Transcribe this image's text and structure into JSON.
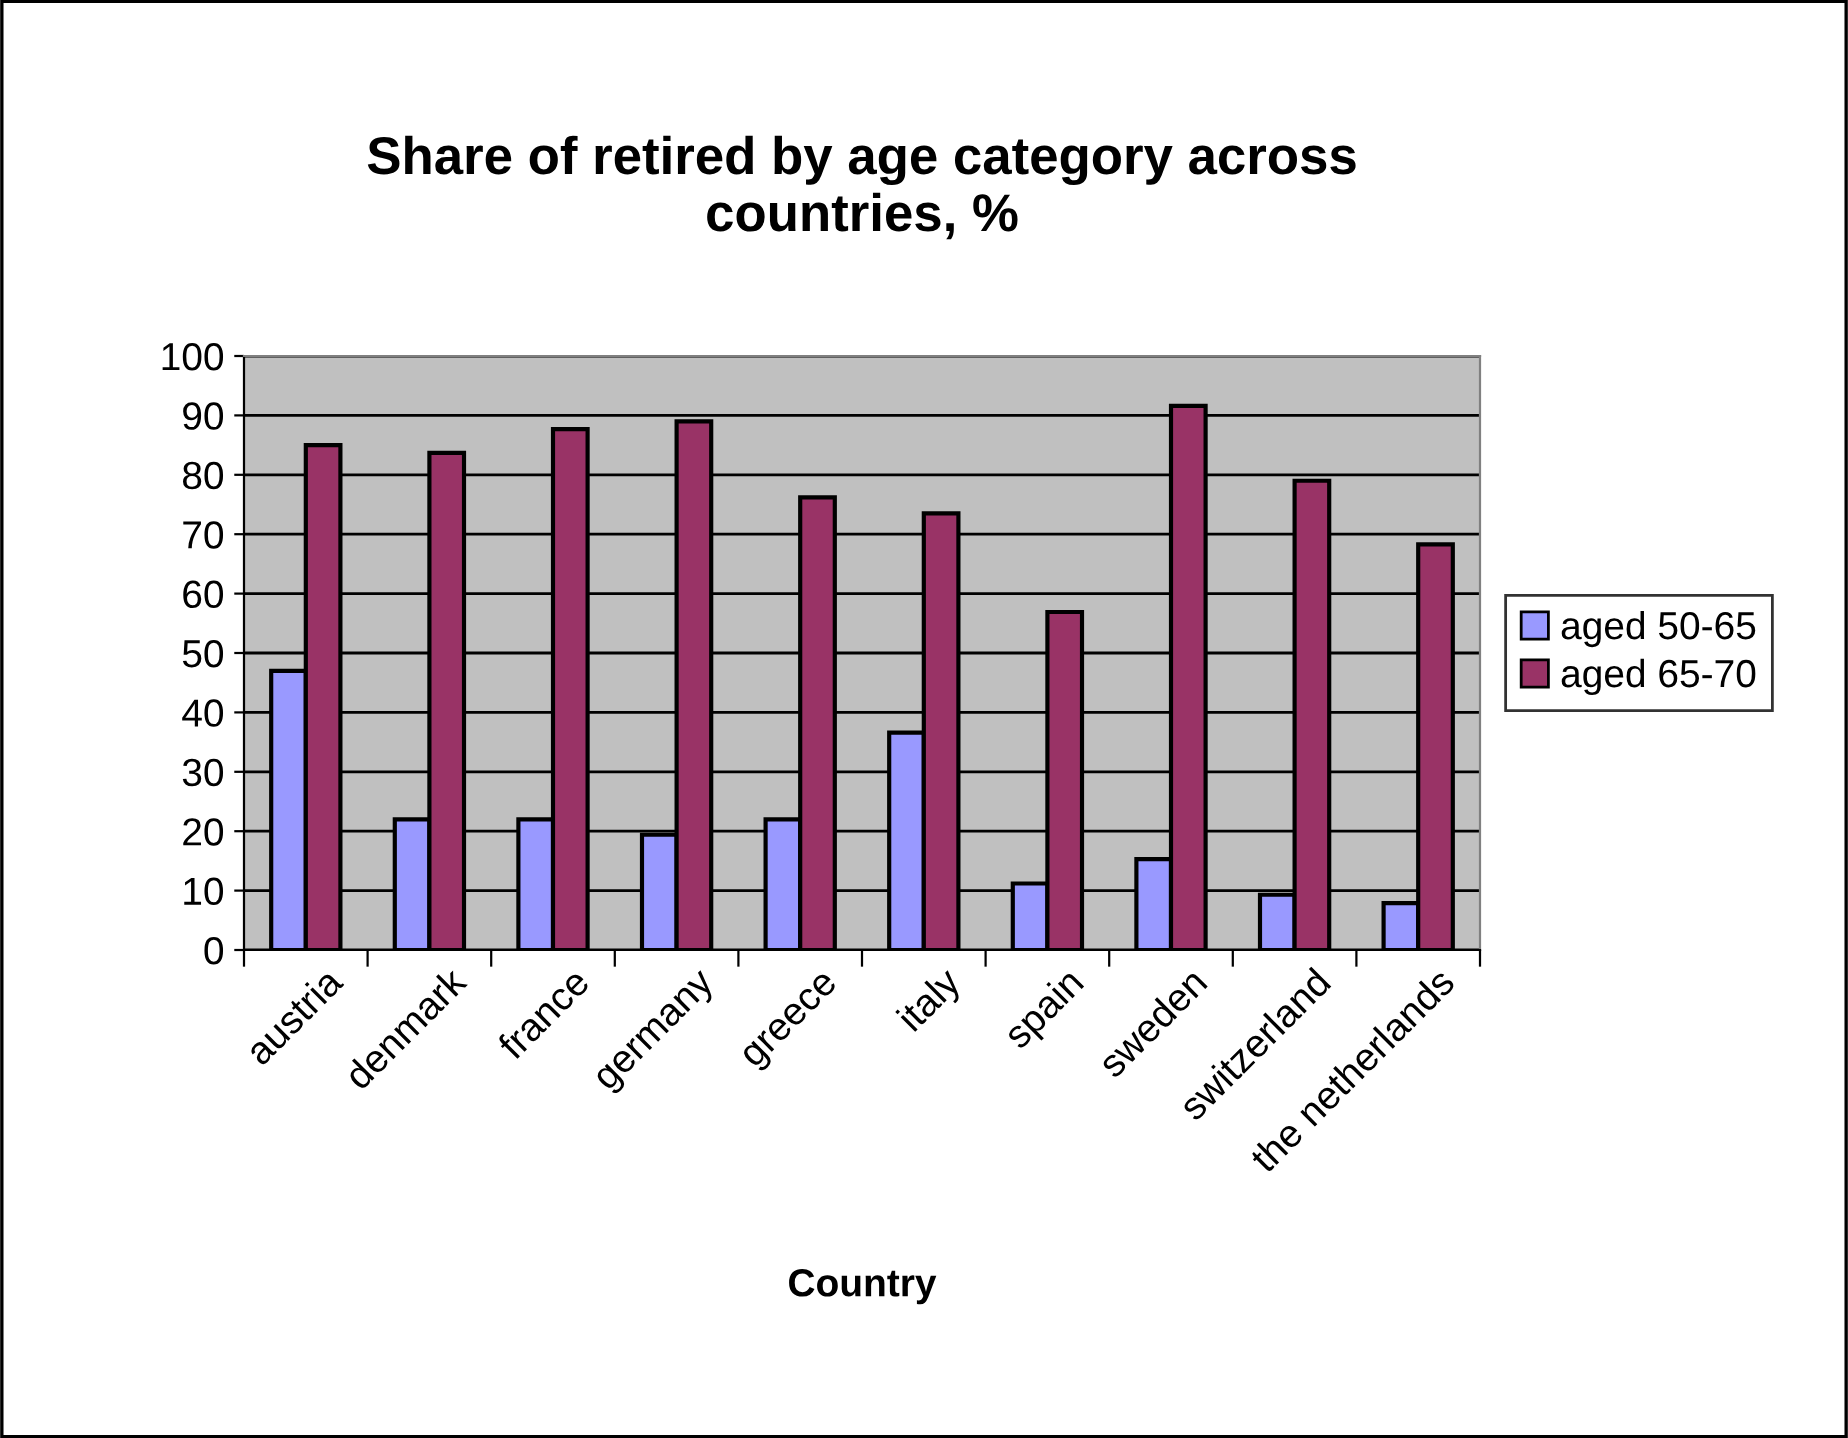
{
  "chart_data": {
    "type": "bar",
    "title": "Share of retired by age category across\ncountries, %",
    "xlabel": "Country",
    "categories": [
      "austria",
      "denmark",
      "france",
      "germany",
      "greece",
      "italy",
      "spain",
      "sweden",
      "switzerland",
      "the netherlands"
    ],
    "series": [
      {
        "name": "aged 50-65",
        "color": "#9999ff",
        "values": [
          47,
          22,
          22,
          19.4,
          22,
          36.6,
          11.2,
          15.3,
          9.3,
          7.9
        ]
      },
      {
        "name": "aged 65-70",
        "color": "#993366",
        "values": [
          85,
          83.7,
          87.7,
          89,
          76.2,
          73.5,
          56.9,
          91.6,
          79,
          68.3
        ]
      }
    ],
    "ylim": [
      0,
      100
    ],
    "yticks": [
      0,
      10,
      20,
      30,
      40,
      50,
      60,
      70,
      80,
      90,
      100
    ],
    "grid": "y",
    "legend": "right"
  }
}
